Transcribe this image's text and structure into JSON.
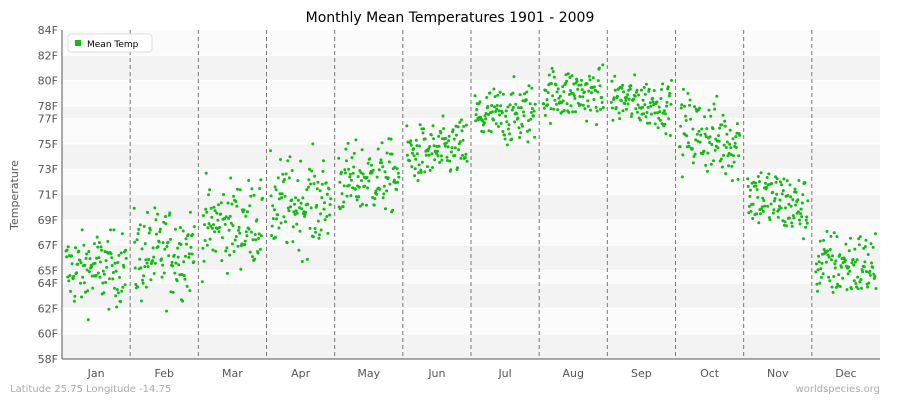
{
  "chart_data": {
    "type": "scatter",
    "title": "Monthly Mean Temperatures 1901 - 2009",
    "xlabel": "",
    "ylabel": "Temperature",
    "legend": {
      "position": "top-left"
    },
    "grid": true,
    "colors": {
      "series": "#11bb11",
      "band": "#f3f3f3",
      "month_divider": "#777777"
    },
    "categories": [
      "Jan",
      "Feb",
      "Mar",
      "Apr",
      "May",
      "Jun",
      "Jul",
      "Aug",
      "Sep",
      "Oct",
      "Nov",
      "Dec"
    ],
    "y_ticks": [
      {
        "value": 58,
        "label": "58F"
      },
      {
        "value": 60,
        "label": "60F"
      },
      {
        "value": 62,
        "label": "62F"
      },
      {
        "value": 64,
        "label": "64F"
      },
      {
        "value": 65,
        "label": "65F"
      },
      {
        "value": 67,
        "label": "67F"
      },
      {
        "value": 69,
        "label": "69F"
      },
      {
        "value": 71,
        "label": "71F"
      },
      {
        "value": 73,
        "label": "73F"
      },
      {
        "value": 75,
        "label": "75F"
      },
      {
        "value": 77,
        "label": "77F"
      },
      {
        "value": 78,
        "label": "78F"
      },
      {
        "value": 80,
        "label": "80F"
      },
      {
        "value": 82,
        "label": "82F"
      },
      {
        "value": 84,
        "label": "84F"
      }
    ],
    "ylim": [
      58,
      84
    ],
    "series": [
      {
        "name": "Mean Temp",
        "summary": [
          {
            "month": "Jan",
            "min": 58.7,
            "max": 68.2,
            "center": 65.0
          },
          {
            "month": "Feb",
            "min": 59.9,
            "max": 71.2,
            "center": 66.0
          },
          {
            "month": "Mar",
            "min": 62.9,
            "max": 73.5,
            "center": 68.5
          },
          {
            "month": "Apr",
            "min": 63.6,
            "max": 75.0,
            "center": 70.0
          },
          {
            "month": "May",
            "min": 67.3,
            "max": 76.0,
            "center": 72.0
          },
          {
            "month": "Jun",
            "min": 70.5,
            "max": 77.5,
            "center": 74.0
          },
          {
            "month": "Jul",
            "min": 73.0,
            "max": 80.5,
            "center": 77.0
          },
          {
            "month": "Aug",
            "min": 76.5,
            "max": 82.9,
            "center": 79.0
          },
          {
            "month": "Sep",
            "min": 75.6,
            "max": 81.5,
            "center": 78.6
          },
          {
            "month": "Oct",
            "min": 71.1,
            "max": 80.5,
            "center": 76.2
          },
          {
            "month": "Nov",
            "min": 67.5,
            "max": 75.5,
            "center": 71.2
          },
          {
            "month": "Dec",
            "min": 62.1,
            "max": 70.5,
            "center": 65.5
          }
        ]
      }
    ]
  },
  "footer": {
    "location": "Latitude 25.75 Longitude -14.75",
    "source": "worldspecies.org"
  }
}
